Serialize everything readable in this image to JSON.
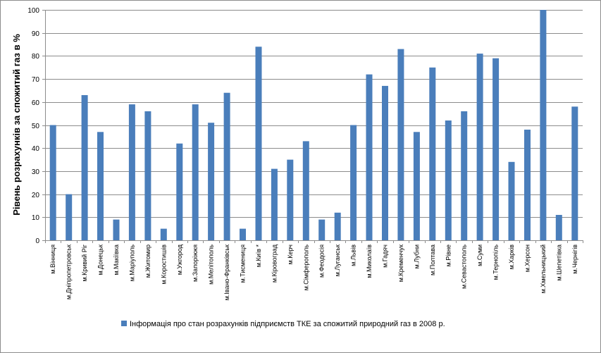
{
  "chart_data": {
    "type": "bar",
    "title": "",
    "xlabel": "",
    "ylabel": "Рівень розрахунків за спожитий газ в %",
    "ylim": [
      0,
      100
    ],
    "yticks": [
      0,
      10,
      20,
      30,
      40,
      50,
      60,
      70,
      80,
      90,
      100
    ],
    "grid": true,
    "legend_position": "bottom",
    "bar_color": "#4a7ebb",
    "categories": [
      "м.Вінниця",
      "м.Дніпропетровськ",
      "м.Кривий Ріг",
      "м.Донецьк",
      "м.Макіївка",
      "м.Маріуполь",
      "м.Житомир",
      "м.Коростишів",
      "м.Ужгород",
      "м.Запоріжжя",
      "м.Мелітополь",
      "м.Івано-Франківськ",
      "м.Тисмениця",
      "м.Київ *",
      "м.Кіровоград",
      "м.Керч",
      "м.Сімферополь",
      "м.Феодосія",
      "м.Луганськ",
      "м.Львів",
      "м.Миколаїв",
      "м.Гадяч",
      "м.Кременчук",
      "м.Лубни",
      "м.Полтава",
      "м.Рівне",
      "м.Севастополь",
      "м.Суми",
      "м.Тернопіль",
      "м.Харків",
      "м.Херсон",
      "м.Хмельницький",
      "м.Шепетівка",
      "м.Чернігів"
    ],
    "series": [
      {
        "name": "Інформація про стан розрахунків підприємств ТКЕ за спожитий природний газ в 2008 р.",
        "values": [
          50,
          20,
          63,
          47,
          9,
          59,
          56,
          5,
          42,
          59,
          51,
          64,
          5,
          84,
          31,
          35,
          43,
          9,
          12,
          50,
          72,
          67,
          83,
          47,
          75,
          52,
          56,
          81,
          79,
          34,
          48,
          100,
          11,
          58
        ]
      }
    ]
  }
}
